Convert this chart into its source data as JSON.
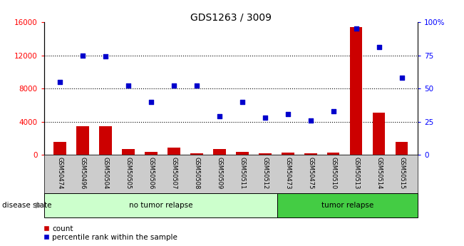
{
  "title": "GDS1263 / 3009",
  "samples": [
    "GSM50474",
    "GSM50496",
    "GSM50504",
    "GSM50505",
    "GSM50506",
    "GSM50507",
    "GSM50508",
    "GSM50509",
    "GSM50511",
    "GSM50512",
    "GSM50473",
    "GSM50475",
    "GSM50510",
    "GSM50513",
    "GSM50514",
    "GSM50515"
  ],
  "counts": [
    1600,
    3500,
    3500,
    700,
    350,
    850,
    200,
    700,
    350,
    200,
    300,
    200,
    300,
    15400,
    5100,
    1600
  ],
  "percentiles": [
    55,
    75,
    74,
    52,
    40,
    52,
    52,
    29,
    40,
    28,
    31,
    26,
    33,
    95,
    81,
    58
  ],
  "no_tumor_count": 10,
  "tumor_count": 6,
  "left_ylim": [
    0,
    16000
  ],
  "right_ylim": [
    0,
    100
  ],
  "left_yticks": [
    0,
    4000,
    8000,
    12000,
    16000
  ],
  "right_yticks": [
    0,
    25,
    50,
    75,
    100
  ],
  "right_yticklabels": [
    "0",
    "25",
    "50",
    "75",
    "100%"
  ],
  "bar_color": "#cc0000",
  "dot_color": "#0000cc",
  "no_tumor_bg": "#ccffcc",
  "tumor_bg": "#44cc44",
  "tick_bg": "#cccccc",
  "legend_red": "#cc0000",
  "legend_blue": "#0000cc"
}
